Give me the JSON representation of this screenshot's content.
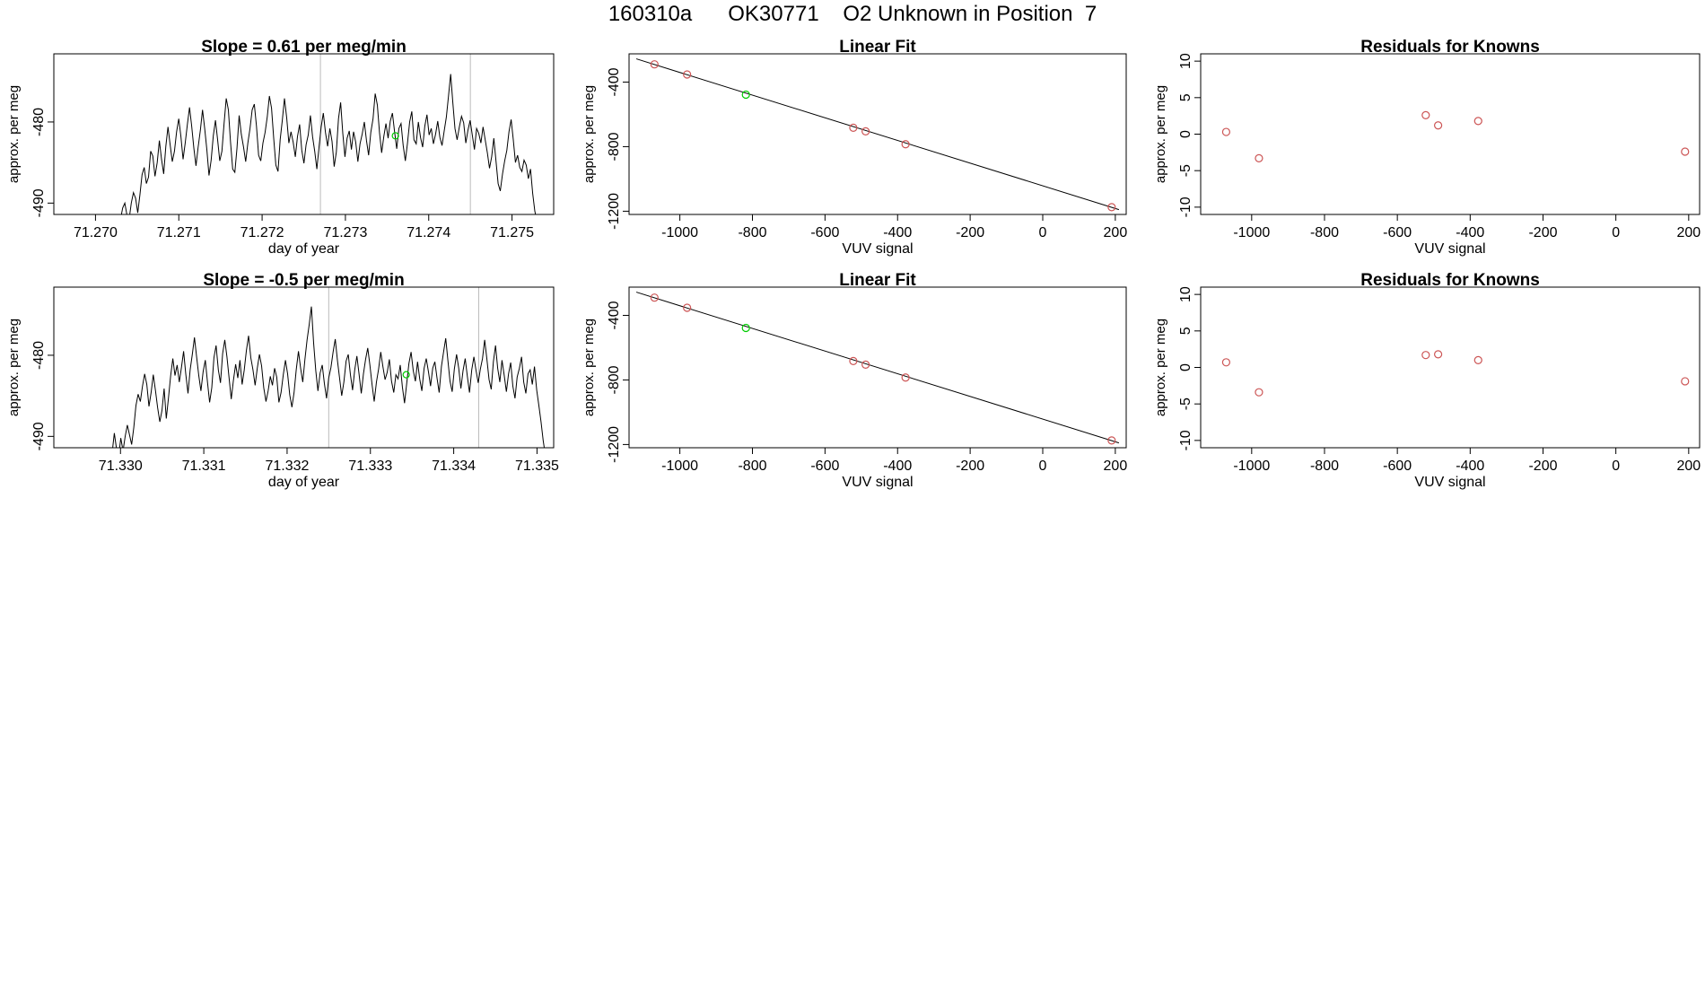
{
  "page": {
    "title": "160310a      OK30771    O2 Unknown in Position  7"
  },
  "chart_data": [
    {
      "id": "p1",
      "type": "line",
      "title": "Slope =  0.61  per meg/min",
      "xlabel": "day of year",
      "ylabel": "approx. per meg",
      "xlim": [
        71.2695,
        71.2755
      ],
      "ylim": [
        -491.4,
        -471.6
      ],
      "xticks": [
        "71.270",
        "71.271",
        "71.272",
        "71.273",
        "71.274",
        "71.275"
      ],
      "xtick_values": [
        71.27,
        71.271,
        71.272,
        71.273,
        71.274,
        71.275
      ],
      "yticks": [
        "-480",
        "-490"
      ],
      "ytick_values": [
        -480,
        -490
      ],
      "vlines": [
        71.2727,
        71.2745
      ],
      "highlight_point": {
        "x": 71.2736,
        "y": -481.7,
        "color": "#00cc00"
      },
      "series": [
        {
          "x_start": 71.2703,
          "x_end": 71.2753,
          "color": "#000000",
          "values": [
            -492,
            -490.6,
            -490,
            -491.5,
            -492,
            -490,
            -488.7,
            -489.4,
            -491.2,
            -489,
            -486.5,
            -485.6,
            -487.6,
            -486.8,
            -483.6,
            -484.2,
            -486.7,
            -485,
            -482.3,
            -484.6,
            -486.4,
            -483,
            -480.6,
            -482.8,
            -484.9,
            -483.6,
            -481.2,
            -479.6,
            -481.8,
            -484.6,
            -482.6,
            -480.3,
            -478.2,
            -480.5,
            -483.2,
            -485.4,
            -483.1,
            -481,
            -478.5,
            -480.8,
            -483.4,
            -486.6,
            -484.7,
            -481.7,
            -479.8,
            -482.2,
            -484.8,
            -483.6,
            -480.2,
            -477.1,
            -478.5,
            -482.5,
            -485.8,
            -486.2,
            -483.2,
            -479.2,
            -481.5,
            -483.1,
            -484.9,
            -482.6,
            -480.8,
            -478.5,
            -477.8,
            -480.5,
            -484.1,
            -484.8,
            -482.6,
            -481.3,
            -479.4,
            -476.8,
            -478.3,
            -482,
            -485.3,
            -486.1,
            -482.2,
            -479.8,
            -477.1,
            -479.5,
            -482.6,
            -481.2,
            -482.5,
            -484.3,
            -481.8,
            -480.3,
            -483.5,
            -485.1,
            -482.8,
            -481.6,
            -479.2,
            -481.8,
            -483.6,
            -485.8,
            -483.1,
            -480.6,
            -478.9,
            -481.3,
            -483,
            -480.8,
            -482.4,
            -485.5,
            -483.7,
            -479.6,
            -477.6,
            -481.4,
            -484.3,
            -482,
            -481.1,
            -483.4,
            -481.2,
            -482.5,
            -484.9,
            -482.7,
            -481.5,
            -480,
            -482.3,
            -484.1,
            -481.3,
            -479.6,
            -476.5,
            -477.9,
            -481.3,
            -483.8,
            -481.8,
            -480.2,
            -482,
            -479.9,
            -478.9,
            -481.2,
            -483.3,
            -480.8,
            -480.2,
            -482.9,
            -484.8,
            -482.6,
            -480,
            -478.7,
            -482.2,
            -482.7,
            -480,
            -481.9,
            -483.1,
            -480.5,
            -479.1,
            -481.6,
            -480.8,
            -482.7,
            -481.5,
            -479.9,
            -481.9,
            -482.9,
            -481.1,
            -479.4,
            -476.8,
            -474.1,
            -477.6,
            -480.8,
            -482.2,
            -480.6,
            -479.3,
            -480.1,
            -482.6,
            -481,
            -479.8,
            -481.6,
            -483.4,
            -480.8,
            -481.4,
            -482.6,
            -480.6,
            -482.2,
            -483.8,
            -485.7,
            -484.3,
            -482,
            -484.8,
            -487.6,
            -488.5,
            -486.4,
            -484.8,
            -483.5,
            -481.2,
            -479.7,
            -482.2,
            -485,
            -484.1,
            -485.6,
            -486.1,
            -484.7,
            -485.3,
            -487,
            -485.8,
            -488.8,
            -491,
            -492.2
          ]
        }
      ]
    },
    {
      "id": "p2",
      "type": "scatter",
      "title": "Linear Fit",
      "xlabel": "VUV signal",
      "ylabel": "approx. per meg",
      "xlim": [
        -1140,
        230
      ],
      "ylim": [
        -1220,
        -225
      ],
      "xticks": [
        "-1000",
        "-800",
        "-600",
        "-400",
        "-200",
        "0",
        "200"
      ],
      "xtick_values": [
        -1000,
        -800,
        -600,
        -400,
        -200,
        0,
        200
      ],
      "yticks": [
        "-400",
        "-800",
        "-1200"
      ],
      "ytick_values": [
        -400,
        -800,
        -1200
      ],
      "fit_line": {
        "x": [
          -1120,
          210
        ],
        "y": [
          -256,
          -1190
        ]
      },
      "points": [
        {
          "x": -1070,
          "y": -290,
          "color": "#cc5555"
        },
        {
          "x": -980,
          "y": -353,
          "color": "#cc5555"
        },
        {
          "x": -818,
          "y": -478,
          "color": "#00cc00"
        },
        {
          "x": -522,
          "y": -683,
          "color": "#cc5555"
        },
        {
          "x": -488,
          "y": -705,
          "color": "#cc5555"
        },
        {
          "x": -378,
          "y": -785,
          "color": "#cc5555"
        },
        {
          "x": 190,
          "y": -1175,
          "color": "#cc5555"
        }
      ]
    },
    {
      "id": "p3",
      "type": "scatter",
      "title": "Residuals for Knowns",
      "xlabel": "VUV signal",
      "ylabel": "approx. per meg",
      "xlim": [
        -1140,
        230
      ],
      "ylim": [
        -11,
        11
      ],
      "xticks": [
        "-1000",
        "-800",
        "-600",
        "-400",
        "-200",
        "0",
        "200"
      ],
      "xtick_values": [
        -1000,
        -800,
        -600,
        -400,
        -200,
        0,
        200
      ],
      "yticks": [
        "10",
        "5",
        "0",
        "-5",
        "-10"
      ],
      "ytick_values": [
        10,
        5,
        0,
        -5,
        -10
      ],
      "points": [
        {
          "x": -1070,
          "y": 0.3,
          "color": "#cc5555"
        },
        {
          "x": -980,
          "y": -3.3,
          "color": "#cc5555"
        },
        {
          "x": -522,
          "y": 2.6,
          "color": "#cc5555"
        },
        {
          "x": -488,
          "y": 1.2,
          "color": "#cc5555"
        },
        {
          "x": -378,
          "y": 1.8,
          "color": "#cc5555"
        },
        {
          "x": 190,
          "y": -2.4,
          "color": "#cc5555"
        }
      ]
    },
    {
      "id": "p4",
      "type": "line",
      "title": "Slope =  -0.5  per meg/min",
      "xlabel": "day of year",
      "ylabel": "approx. per meg",
      "xlim": [
        71.3292,
        71.3352
      ],
      "ylim": [
        -491.4,
        -471.6
      ],
      "xticks": [
        "71.330",
        "71.331",
        "71.332",
        "71.333",
        "71.334",
        "71.335"
      ],
      "xtick_values": [
        71.33,
        71.331,
        71.332,
        71.333,
        71.334,
        71.335
      ],
      "yticks": [
        "-480",
        "-490"
      ],
      "ytick_values": [
        -480,
        -490
      ],
      "vlines": [
        71.3325,
        71.3343
      ],
      "highlight_point": {
        "x": 71.33343,
        "y": -482.4,
        "color": "#00cc00"
      },
      "series": [
        {
          "x_start": 71.3299,
          "x_end": 71.3351,
          "color": "#000000",
          "values": [
            -492,
            -489.6,
            -491.5,
            -492.5,
            -490.2,
            -491.8,
            -490,
            -488.6,
            -489.8,
            -491,
            -488.9,
            -486.2,
            -484.8,
            -485.7,
            -483.8,
            -482.3,
            -483.6,
            -486.3,
            -484.6,
            -482.4,
            -484.4,
            -486.5,
            -488.2,
            -486.8,
            -484.1,
            -487.8,
            -485.3,
            -482.5,
            -480.4,
            -482.5,
            -481.2,
            -483.3,
            -481.5,
            -479.5,
            -482.3,
            -484.7,
            -481.8,
            -479.9,
            -477.8,
            -480.2,
            -482.5,
            -484.4,
            -482,
            -480.6,
            -483.3,
            -485.8,
            -484,
            -480.3,
            -478.8,
            -481.8,
            -483.4,
            -479.8,
            -478.1,
            -480.2,
            -482.8,
            -485.4,
            -483.1,
            -481.1,
            -482.8,
            -480.6,
            -483.6,
            -481.8,
            -479.4,
            -477.6,
            -480.3,
            -481.8,
            -483.7,
            -481.6,
            -479.9,
            -481.3,
            -484,
            -485.7,
            -484.4,
            -482.6,
            -483.7,
            -481.6,
            -482.7,
            -485.8,
            -484.6,
            -482.4,
            -480.6,
            -482.3,
            -484.9,
            -486.4,
            -484.6,
            -481.8,
            -479.5,
            -481.6,
            -483.3,
            -480.5,
            -478.1,
            -476.2,
            -474,
            -478.5,
            -481.9,
            -484.4,
            -482.2,
            -481.2,
            -483.5,
            -485.3,
            -482.8,
            -481.5,
            -479.6,
            -478,
            -480.6,
            -482.8,
            -485,
            -483.3,
            -480.7,
            -479.9,
            -482.4,
            -484.3,
            -481.8,
            -480.1,
            -482.3,
            -484.7,
            -482.3,
            -480.5,
            -479.1,
            -481.2,
            -483.6,
            -485.7,
            -483.3,
            -481.7,
            -479.6,
            -481.4,
            -483,
            -482.1,
            -480.5,
            -483.2,
            -484.6,
            -482.4,
            -482.9,
            -481.2,
            -483.9,
            -485.9,
            -483.5,
            -481,
            -479.6,
            -481.9,
            -483.2,
            -480.8,
            -482.9,
            -484.4,
            -481.6,
            -480.4,
            -482,
            -483.8,
            -481.6,
            -480.8,
            -482.8,
            -484.6,
            -481.4,
            -479.6,
            -477.9,
            -480.6,
            -483.2,
            -484.5,
            -481.7,
            -479.9,
            -481.6,
            -484.1,
            -481.9,
            -480.4,
            -482.6,
            -484.6,
            -481.8,
            -480.2,
            -481.9,
            -483.4,
            -481.7,
            -480.4,
            -478.1,
            -480.4,
            -483,
            -484.2,
            -480.8,
            -478.8,
            -481.6,
            -483.3,
            -480.6,
            -482.5,
            -484.5,
            -482.3,
            -480.9,
            -483.8,
            -485.3,
            -482.7,
            -481.6,
            -480.2,
            -483.3,
            -484.7,
            -482.3,
            -481.8,
            -483.6,
            -481.4,
            -484.3,
            -486.2,
            -488.2,
            -490.5,
            -492.3
          ]
        }
      ]
    },
    {
      "id": "p5",
      "type": "scatter",
      "title": "Linear Fit",
      "xlabel": "VUV signal",
      "ylabel": "approx. per meg",
      "xlim": [
        -1140,
        230
      ],
      "ylim": [
        -1220,
        -225
      ],
      "xticks": [
        "-1000",
        "-800",
        "-600",
        "-400",
        "-200",
        "0",
        "200"
      ],
      "xtick_values": [
        -1000,
        -800,
        -600,
        -400,
        -200,
        0,
        200
      ],
      "yticks": [
        "-400",
        "-800",
        "-1200"
      ],
      "ytick_values": [
        -400,
        -800,
        -1200
      ],
      "fit_line": {
        "x": [
          -1120,
          210
        ],
        "y": [
          -256,
          -1190
        ]
      },
      "points": [
        {
          "x": -1070,
          "y": -290,
          "color": "#cc5555"
        },
        {
          "x": -980,
          "y": -353,
          "color": "#cc5555"
        },
        {
          "x": -818,
          "y": -478,
          "color": "#00cc00"
        },
        {
          "x": -522,
          "y": -683,
          "color": "#cc5555"
        },
        {
          "x": -488,
          "y": -705,
          "color": "#cc5555"
        },
        {
          "x": -378,
          "y": -785,
          "color": "#cc5555"
        },
        {
          "x": 190,
          "y": -1175,
          "color": "#cc5555"
        }
      ]
    },
    {
      "id": "p6",
      "type": "scatter",
      "title": "Residuals for Knowns",
      "xlabel": "VUV signal",
      "ylabel": "approx. per meg",
      "xlim": [
        -1140,
        230
      ],
      "ylim": [
        -11,
        11
      ],
      "xticks": [
        "-1000",
        "-800",
        "-600",
        "-400",
        "-200",
        "0",
        "200"
      ],
      "xtick_values": [
        -1000,
        -800,
        -600,
        -400,
        -200,
        0,
        200
      ],
      "yticks": [
        "10",
        "5",
        "0",
        "-5",
        "-10"
      ],
      "ytick_values": [
        10,
        5,
        0,
        -5,
        -10
      ],
      "points": [
        {
          "x": -1070,
          "y": 0.7,
          "color": "#cc5555"
        },
        {
          "x": -980,
          "y": -3.4,
          "color": "#cc5555"
        },
        {
          "x": -522,
          "y": 1.7,
          "color": "#cc5555"
        },
        {
          "x": -488,
          "y": 1.8,
          "color": "#cc5555"
        },
        {
          "x": -378,
          "y": 1.0,
          "color": "#cc5555"
        },
        {
          "x": 190,
          "y": -1.9,
          "color": "#cc5555"
        }
      ]
    }
  ]
}
